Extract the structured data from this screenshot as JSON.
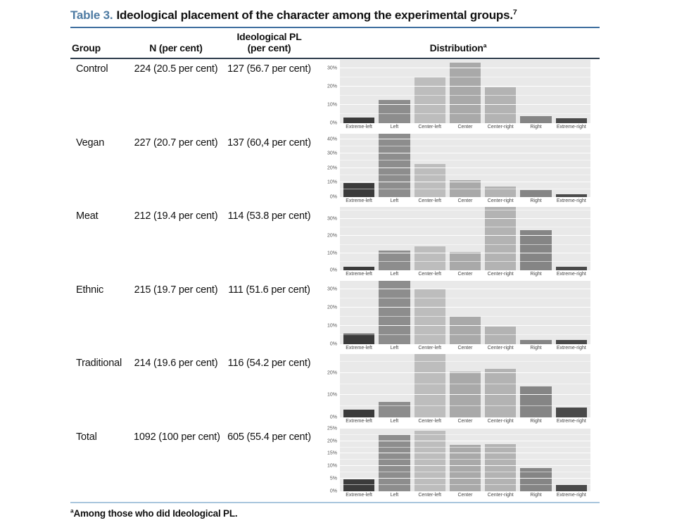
{
  "title": {
    "label": "Table 3.",
    "text": "Ideological placement of the character among the experimental groups.",
    "footnote_ref": "7"
  },
  "columns": {
    "group": "Group",
    "n": "N (per cent)",
    "pl_line1": "Ideological PL",
    "pl_line2": "(per cent)",
    "distribution": "Distribution",
    "distribution_sup": "a"
  },
  "rows": [
    {
      "group": "Control",
      "n": "224 (20.5 per cent)",
      "pl": "127 (56.7 per cent)"
    },
    {
      "group": "Vegan",
      "n": "227 (20.7 per cent)",
      "pl": "137 (60,4 per cent)"
    },
    {
      "group": "Meat",
      "n": "212 (19.4 per cent)",
      "pl": "114 (53.8 per cent)"
    },
    {
      "group": "Ethnic",
      "n": "215 (19.7 per cent)",
      "pl": "111 (51.6 per cent)"
    },
    {
      "group": "Traditional",
      "n": "214 (19.6 per cent)",
      "pl": "116 (54.2 per cent)"
    },
    {
      "group": "Total",
      "n": "1092 (100 per cent)",
      "pl": "605 (55.4 per cent)"
    }
  ],
  "chart_data": {
    "type": "bar",
    "categories": [
      "Extreme-left",
      "Left",
      "Center-left",
      "Center",
      "Center-right",
      "Right",
      "Extreme-right"
    ],
    "bar_colors": [
      "#3b3b3b",
      "#8d8d8d",
      "#bdbdbd",
      "#a9a9a9",
      "#b3b3b3",
      "#858585",
      "#4a4a4a"
    ],
    "panel_background": "#e9e9e9",
    "grid": "white major and minor horizontal gridlines",
    "series": [
      {
        "name": "Control",
        "values": [
          3,
          12.5,
          25,
          33,
          19.5,
          4,
          2.5
        ],
        "yticks": [
          0,
          10,
          20,
          30
        ],
        "ymax": 34.5
      },
      {
        "name": "Vegan",
        "values": [
          9.5,
          44,
          22.5,
          11.5,
          7,
          4.5,
          1.5
        ],
        "yticks": [
          0,
          10,
          20,
          30,
          40
        ],
        "ymax": 44
      },
      {
        "name": "Meat",
        "values": [
          2,
          11.5,
          14,
          10.5,
          37,
          23.5,
          2
        ],
        "yticks": [
          0,
          10,
          20,
          30
        ],
        "ymax": 37
      },
      {
        "name": "Ethnic",
        "values": [
          5.5,
          35,
          30.5,
          15,
          9.5,
          2,
          2
        ],
        "yticks": [
          0,
          10,
          20,
          30
        ],
        "ymax": 35
      },
      {
        "name": "Traditional",
        "values": [
          3.5,
          7,
          28.5,
          20.5,
          22,
          14,
          4.5
        ],
        "yticks": [
          0,
          10,
          20
        ],
        "ymax": 28.5
      },
      {
        "name": "Total",
        "values": [
          4.8,
          22.5,
          24,
          18.5,
          18.7,
          9.3,
          2.5
        ],
        "yticks": [
          0,
          5,
          10,
          15,
          20,
          25
        ],
        "ymax": 25.4
      }
    ]
  },
  "footnote": {
    "sup": "a",
    "text": "Among those who did Ideological PL."
  },
  "colors": {
    "title_accent": "#4e7ba3",
    "title_rule": "#3f6f9f",
    "header_rule": "#2f3d4d",
    "bottom_rule": "#a9c6dd",
    "text": "#111111"
  }
}
